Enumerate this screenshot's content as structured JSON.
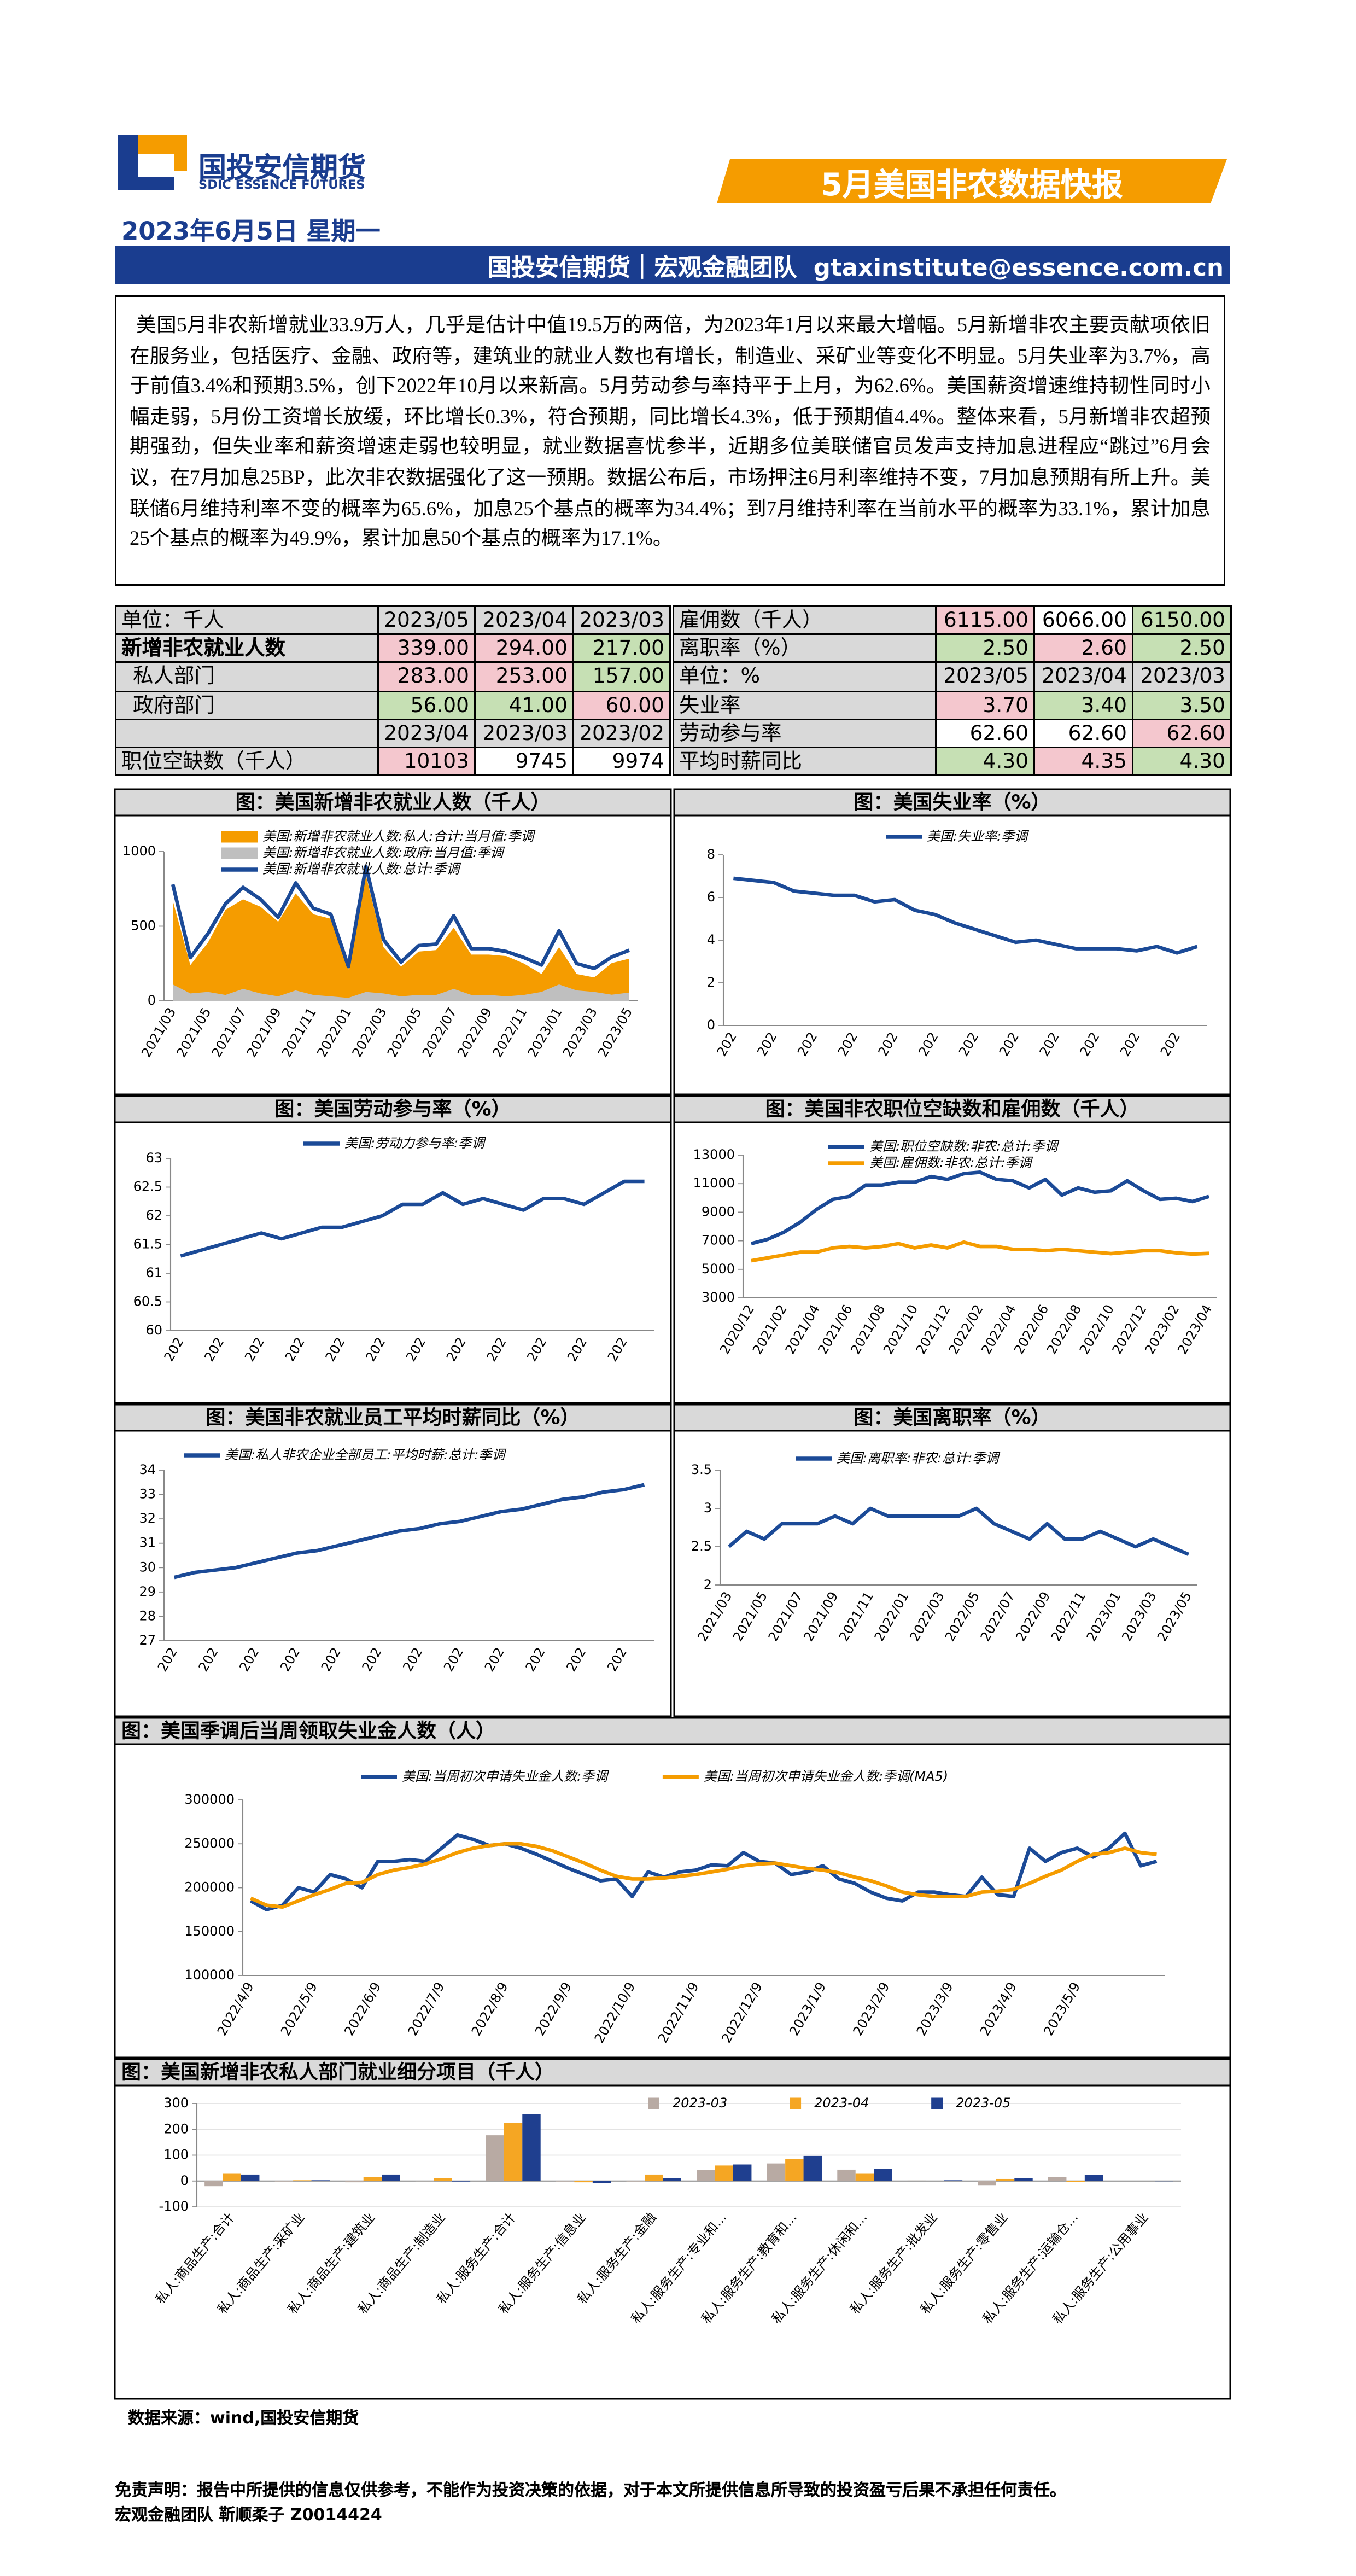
{
  "header": {
    "logo_cn": "国投安信期货",
    "logo_en": "SDIC ESSENCE FUTURES",
    "title": "5月美国非农数据快报",
    "date": "2023年6月5日 星期一",
    "team": "国投安信期货｜宏观金融团队",
    "email": "gtaxinstitute@essence.com.cn"
  },
  "summary": "美国5月非农新增就业33.9万人，几乎是估计中值19.5万的两倍，为2023年1月以来最大增幅。5月新增非农主要贡献项依旧在服务业，包括医疗、金融、政府等，建筑业的就业人数也有增长，制造业、采矿业等变化不明显。5月失业率为3.7%，高于前值3.4%和预期3.5%，创下2022年10月以来新高。5月劳动参与率持平于上月，为62.6%。美国薪资增速维持韧性同时小幅走弱，5月份工资增长放缓，环比增长0.3%，符合预期，同比增长4.3%，低于预期值4.4%。整体来看，5月新增非农超预期强劲，但失业率和薪资增速走弱也较明显，就业数据喜忧参半，近期多位美联储官员发声支持加息进程应“跳过”6月会议，在7月加息25BP，此次非农数据强化了这一预期。数据公布后，市场押注6月利率维持不变，7月加息预期有所上升。美联储6月维持利率不变的概率为65.6%，加息25个基点的概率为34.4%；到7月维持利率在当前水平的概率为33.1%，累计加息25个基点的概率为49.9%，累计加息50个基点的概率为17.1%。",
  "tables": [
    {
      "rows": [
        {
          "label": "单位：千人",
          "cells": [
            "2023/05",
            "2023/04",
            "2023/03"
          ]
        },
        {
          "label": "新增非农就业人数",
          "style": "bold",
          "cells": [
            "339.00",
            "294.00",
            "217.00"
          ],
          "colors": [
            "#f4c7ce",
            "#f4c7ce",
            "#c6e0b4"
          ]
        },
        {
          "label": "私人部门",
          "style": "indent",
          "cells": [
            "283.00",
            "253.00",
            "157.00"
          ],
          "colors": [
            "#f4c7ce",
            "#f4c7ce",
            "#c6e0b4"
          ]
        },
        {
          "label": "政府部门",
          "style": "indent",
          "cells": [
            "56.00",
            "41.00",
            "60.00"
          ],
          "colors": [
            "#c6e0b4",
            "#c6e0b4",
            "#f4c7ce"
          ]
        },
        {
          "cells": [
            "2023/04",
            "2023/03",
            "2023/02"
          ]
        },
        {
          "label": "职位空缺数（千人）",
          "cells": [
            "10103",
            "9745",
            "9974"
          ],
          "colors": [
            "#f4c7ce",
            "#ffffff",
            "#ffffff"
          ]
        }
      ]
    },
    {
      "rows": [
        {
          "label": "雇佣数（千人）",
          "cells": [
            "6115.00",
            "6066.00",
            "6150.00"
          ],
          "colors": [
            "#f4c7ce",
            "#ffffff",
            "#c6e0b4"
          ]
        },
        {
          "label": "离职率（%）",
          "cells": [
            "2.50",
            "2.60",
            "2.50"
          ],
          "colors": [
            "#c6e0b4",
            "#f4c7ce",
            "#c6e0b4"
          ]
        },
        {
          "label": "单位：%",
          "cells": [
            "2023/05",
            "2023/04",
            "2023/03"
          ]
        },
        {
          "label": "失业率",
          "cells": [
            "3.70",
            "3.40",
            "3.50"
          ],
          "colors": [
            "#f4c7ce",
            "#c6e0b4",
            "#c6e0b4"
          ]
        },
        {
          "label": "劳动参与率",
          "cells": [
            "62.60",
            "62.60",
            "62.60"
          ],
          "colors": [
            "#ffffff",
            "#ffffff",
            "#f4c7ce"
          ]
        },
        {
          "label": "平均时薪同比",
          "cells": [
            "4.30",
            "4.35",
            "4.30"
          ],
          "colors": [
            "#c6e0b4",
            "#f4c7ce",
            "#c6e0b4"
          ]
        }
      ]
    }
  ],
  "chart_data": [
    {
      "type": "area",
      "title": "图：美国新增非农就业人数（千人）",
      "categories": [
        "2021/03",
        null,
        "2021/05",
        null,
        "2021/07",
        null,
        "2021/09",
        null,
        "2021/11",
        null,
        "2022/01",
        null,
        "2022/03",
        null,
        "2022/05",
        null,
        "2022/07",
        null,
        "2022/09",
        null,
        "2022/11",
        null,
        "2023/01",
        null,
        "2023/03",
        null,
        "2023/05"
      ],
      "series": [
        {
          "name": "美国:新增非农就业人数:私人:合计:当月值:季调",
          "color": "#f59c00",
          "values": [
            670,
            240,
            390,
            610,
            680,
            630,
            530,
            720,
            580,
            550,
            210,
            840,
            360,
            230,
            330,
            340,
            490,
            310,
            310,
            300,
            250,
            180,
            360,
            180,
            157,
            253,
            283
          ]
        },
        {
          "name": "美国:新增非农就业人数:政府:当月值:季调",
          "color": "#bfbfbf",
          "values": [
            110,
            50,
            60,
            40,
            80,
            50,
            30,
            70,
            40,
            30,
            20,
            60,
            50,
            30,
            40,
            40,
            80,
            40,
            40,
            30,
            40,
            60,
            110,
            70,
            60,
            41,
            56
          ]
        },
        {
          "name": "美国:新增非农就业人数:总计:季调",
          "color": "#1b4a97",
          "mark": "line",
          "values": [
            780,
            290,
            450,
            650,
            760,
            680,
            560,
            790,
            620,
            580,
            230,
            900,
            410,
            260,
            370,
            380,
            570,
            350,
            350,
            330,
            290,
            240,
            470,
            250,
            217,
            294,
            339
          ]
        }
      ],
      "ylim": [
        0,
        1000
      ],
      "yticks": [
        0,
        500,
        1000
      ]
    },
    {
      "type": "line",
      "title": "图：美国失业率（%）",
      "categories": [
        "202",
        null,
        "202",
        null,
        "202",
        null,
        "202",
        null,
        "202",
        null,
        "202",
        null,
        "202",
        null,
        "202",
        null,
        "202",
        null,
        "202",
        null,
        "202",
        null,
        "202",
        null
      ],
      "series": [
        {
          "name": "美国:失业率:季调",
          "color": "#1b4a97",
          "values": [
            6.9,
            6.8,
            6.7,
            6.3,
            6.2,
            6.1,
            6.1,
            5.8,
            5.9,
            5.4,
            5.2,
            4.8,
            4.5,
            4.2,
            3.9,
            4.0,
            3.8,
            3.6,
            3.6,
            3.6,
            3.5,
            3.7,
            3.4,
            3.7
          ]
        }
      ],
      "ylim": [
        0,
        8
      ],
      "yticks": [
        0,
        2,
        4,
        6,
        8
      ]
    },
    {
      "type": "line",
      "title": "图：美国劳动参与率（%）",
      "categories": [
        "202",
        null,
        "202",
        null,
        "202",
        null,
        "202",
        null,
        "202",
        null,
        "202",
        null,
        "202",
        null,
        "202",
        null,
        "202",
        null,
        "202",
        null,
        "202",
        null,
        "202",
        null
      ],
      "series": [
        {
          "name": "美国:劳动力参与率:季调",
          "color": "#1b4a97",
          "values": [
            61.3,
            61.4,
            61.5,
            61.6,
            61.7,
            61.6,
            61.7,
            61.8,
            61.8,
            61.9,
            62.0,
            62.2,
            62.2,
            62.4,
            62.2,
            62.3,
            62.2,
            62.1,
            62.3,
            62.3,
            62.2,
            62.4,
            62.6,
            62.6
          ]
        }
      ],
      "ylim": [
        60,
        63
      ],
      "yticks": [
        60,
        60.5,
        61,
        61.5,
        62,
        62.5,
        63
      ]
    },
    {
      "type": "line",
      "title": "图：美国非农职位空缺数和雇佣数（千人）",
      "categories": [
        "2020/12",
        null,
        "2021/02",
        null,
        "2021/04",
        null,
        "2021/06",
        null,
        "2021/08",
        null,
        "2021/10",
        null,
        "2021/12",
        null,
        "2022/02",
        null,
        "2022/04",
        null,
        "2022/06",
        null,
        "2022/08",
        null,
        "2022/10",
        null,
        "2022/12",
        null,
        "2023/02",
        null,
        "2023/04"
      ],
      "series": [
        {
          "name": "美国:职位空缺数:非农:总计:季调",
          "color": "#1b4a97",
          "values": [
            6800,
            7100,
            7600,
            8300,
            9200,
            9900,
            10100,
            10900,
            10900,
            11100,
            11100,
            11500,
            11300,
            11700,
            11800,
            11300,
            11200,
            10700,
            11300,
            10200,
            10700,
            10400,
            10500,
            11200,
            10500,
            9900,
            9974,
            9745,
            10103
          ]
        },
        {
          "name": "美国:雇佣数:非农:总计:季调",
          "color": "#f59c00",
          "values": [
            5600,
            5800,
            6000,
            6200,
            6200,
            6500,
            6600,
            6500,
            6600,
            6800,
            6500,
            6700,
            6500,
            6900,
            6600,
            6600,
            6400,
            6400,
            6300,
            6400,
            6300,
            6200,
            6100,
            6200,
            6300,
            6300,
            6150,
            6066,
            6115
          ]
        }
      ],
      "ylim": [
        3000,
        13000
      ],
      "yticks": [
        3000,
        5000,
        7000,
        9000,
        11000,
        13000
      ]
    },
    {
      "type": "line",
      "title": "图：美国非农就业员工平均时薪同比（%）",
      "categories": [
        "202",
        null,
        "202",
        null,
        "202",
        null,
        "202",
        null,
        "202",
        null,
        "202",
        null,
        "202",
        null,
        "202",
        null,
        "202",
        null,
        "202",
        null,
        "202",
        null,
        "202",
        null
      ],
      "series": [
        {
          "name": "美国:私人非农企业全部员工:平均时薪:总计:季调",
          "color": "#1b4a97",
          "values": [
            29.6,
            29.8,
            29.9,
            30.0,
            30.2,
            30.4,
            30.6,
            30.7,
            30.9,
            31.1,
            31.3,
            31.5,
            31.6,
            31.8,
            31.9,
            32.1,
            32.3,
            32.4,
            32.6,
            32.8,
            32.9,
            33.1,
            33.2,
            33.4
          ]
        }
      ],
      "ylim": [
        27,
        34
      ],
      "yticks": [
        27,
        28,
        29,
        30,
        31,
        32,
        33,
        34
      ]
    },
    {
      "type": "line",
      "title": "图：美国离职率（%）",
      "categories": [
        "2021/03",
        null,
        "2021/05",
        null,
        "2021/07",
        null,
        "2021/09",
        null,
        "2021/11",
        null,
        "2022/01",
        null,
        "2022/03",
        null,
        "2022/05",
        null,
        "2022/07",
        null,
        "2022/09",
        null,
        "2022/11",
        null,
        "2023/01",
        null,
        "2023/03",
        null,
        "2023/05"
      ],
      "series": [
        {
          "name": "美国:离职率:非农:总计:季调",
          "color": "#1b4a97",
          "values": [
            2.5,
            2.7,
            2.6,
            2.8,
            2.8,
            2.8,
            2.9,
            2.8,
            3.0,
            2.9,
            2.9,
            2.9,
            2.9,
            2.9,
            3.0,
            2.8,
            2.7,
            2.6,
            2.8,
            2.6,
            2.6,
            2.7,
            2.6,
            2.5,
            2.6,
            2.5,
            2.4
          ]
        }
      ],
      "ylim": [
        2,
        3.5
      ],
      "yticks": [
        2,
        2.5,
        3,
        3.5
      ]
    },
    {
      "type": "line",
      "title": "图：美国季调后当周领取失业金人数（人）",
      "categories": [
        "2022/4/9",
        null,
        null,
        null,
        "2022/5/9",
        null,
        null,
        null,
        "2022/6/9",
        null,
        null,
        null,
        "2022/7/9",
        null,
        null,
        null,
        "2022/8/9",
        null,
        null,
        null,
        "2022/9/9",
        null,
        null,
        null,
        "2022/10/9",
        null,
        null,
        null,
        "2022/11/9",
        null,
        null,
        null,
        "2022/12/9",
        null,
        null,
        null,
        "2023/1/9",
        null,
        null,
        null,
        "2023/2/9",
        null,
        null,
        null,
        "2023/3/9",
        null,
        null,
        null,
        "2023/4/9",
        null,
        null,
        null,
        "2023/5/9",
        null,
        null,
        null,
        null,
        null
      ],
      "series": [
        {
          "name": "美国:当周初次申请失业金人数:季调",
          "color": "#1b4a97",
          "values": [
            185000,
            175000,
            180000,
            200000,
            195000,
            215000,
            210000,
            200000,
            230000,
            230000,
            232000,
            230000,
            245000,
            260000,
            255000,
            248000,
            250000,
            245000,
            238000,
            230000,
            222000,
            215000,
            208000,
            210000,
            190000,
            218000,
            212000,
            218000,
            220000,
            226000,
            225000,
            240000,
            230000,
            228000,
            215000,
            218000,
            225000,
            210000,
            205000,
            195000,
            188000,
            185000,
            195000,
            195000,
            192000,
            190000,
            212000,
            192000,
            190000,
            245000,
            230000,
            240000,
            245000,
            235000,
            245000,
            262000,
            225000,
            230000
          ]
        },
        {
          "name": "美国:当周初次申请失业金人数:季调(MA5)",
          "color": "#f59c00",
          "values": [
            188000,
            180000,
            178000,
            185000,
            192000,
            198000,
            205000,
            206000,
            215000,
            220000,
            223000,
            227000,
            233000,
            240000,
            245000,
            248000,
            250000,
            250000,
            247000,
            242000,
            235000,
            228000,
            220000,
            213000,
            210000,
            210000,
            211000,
            213000,
            215000,
            218000,
            221000,
            225000,
            227000,
            228000,
            225000,
            222000,
            220000,
            217000,
            212000,
            208000,
            202000,
            195000,
            192000,
            190000,
            190000,
            190000,
            195000,
            196000,
            198000,
            205000,
            213000,
            220000,
            230000,
            238000,
            240000,
            245000,
            240000,
            238000
          ]
        }
      ],
      "ylim": [
        100000,
        300000
      ],
      "yticks": [
        100000,
        150000,
        200000,
        250000,
        300000
      ]
    },
    {
      "type": "bar",
      "title": "图：美国新增非农私人部门就业细分项目（千人）",
      "categories": [
        "私人:商品生产:合计",
        "私人:商品生产:采矿业",
        "私人:商品生产:建筑业",
        "私人:商品生产:制造业",
        "私人:服务生产:合计",
        "私人:服务生产:信息业",
        "私人:服务生产:金融",
        "私人:服务生产:专业和...",
        "私人:服务生产:教育和...",
        "私人:服务生产:休闲和...",
        "私人:服务生产:批发业",
        "私人:服务生产:零售业",
        "私人:服务生产:运输仓...",
        "私人:服务生产:公用事业"
      ],
      "series": [
        {
          "name": "2023-03",
          "color": "#b8aaa3",
          "values": [
            -20,
            -2,
            -5,
            -1,
            177,
            -2,
            -2,
            42,
            68,
            44,
            2,
            -18,
            15,
            0
          ]
        },
        {
          "name": "2023-04",
          "color": "#f5a623",
          "values": [
            28,
            3,
            15,
            11,
            225,
            -5,
            25,
            60,
            85,
            28,
            0,
            8,
            -4,
            1
          ]
        },
        {
          "name": "2023-05",
          "color": "#1f3f8f",
          "values": [
            25,
            3,
            25,
            -2,
            258,
            -9,
            12,
            64,
            97,
            48,
            3,
            12,
            24,
            -1
          ]
        }
      ],
      "ylim": [
        -100,
        300
      ],
      "yticks": [
        -100,
        0,
        100,
        200,
        300
      ],
      "grid": true
    }
  ],
  "source": "数据来源：wind,国投安信期货",
  "footer": {
    "disclaimer": "免责声明：报告中所提供的信息仅供参考，不能作为投资决策的依据，对于本文所提供信息所导致的投资盈亏后果不承担任何责任。",
    "author": "宏观金融团队 靳顺柔子 Z0014424"
  }
}
